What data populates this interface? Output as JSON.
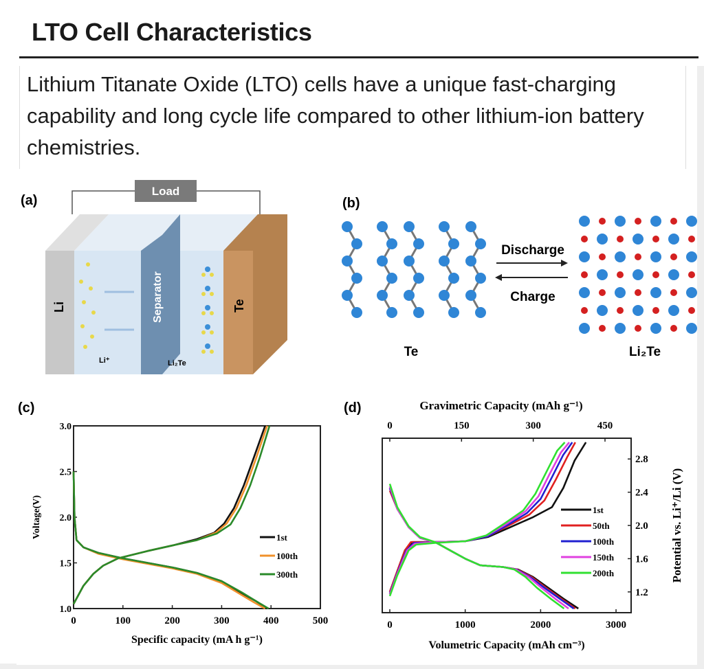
{
  "header": {
    "title": "LTO Cell Characteristics"
  },
  "body": {
    "paragraph": "Lithium Titanate Oxide (LTO) cells have a unique fast-charging capability and long cycle life compared to other lithium-ion battery chemistries."
  },
  "figure": {
    "panel_a": {
      "label": "(a)",
      "load": "Load",
      "li": "Li",
      "separator": "Separator",
      "te": "Te",
      "li_ion": "Li⁺",
      "li2te": "Li₂Te"
    },
    "panel_b": {
      "label": "(b)",
      "discharge": "Discharge",
      "charge": "Charge",
      "te": "Te",
      "li2te": "Li₂Te"
    },
    "panel_c": {
      "label": "(c)"
    },
    "panel_d": {
      "label": "(d)"
    }
  },
  "colors": {
    "accent": "#1c1c1c"
  },
  "chart_data": [
    {
      "type": "line",
      "title": "",
      "xlabel": "Specific capacity (mA h g⁻¹)",
      "ylabel": "Voltage(V)",
      "xlim": [
        0,
        500
      ],
      "ylim": [
        1.0,
        3.0
      ],
      "xticks": [
        "0",
        "100",
        "200",
        "300",
        "400",
        "500"
      ],
      "yticks": [
        "1.0",
        "1.5",
        "2.0",
        "2.5",
        "3.0"
      ],
      "legend": "right",
      "series": [
        {
          "name": "1st",
          "color": "#111111",
          "discharge": [
            [
              0,
              2.5
            ],
            [
              2,
              2.0
            ],
            [
              6,
              1.75
            ],
            [
              20,
              1.67
            ],
            [
              50,
              1.61
            ],
            [
              100,
              1.55
            ],
            [
              150,
              1.5
            ],
            [
              200,
              1.45
            ],
            [
              250,
              1.39
            ],
            [
              300,
              1.3
            ],
            [
              340,
              1.17
            ],
            [
              370,
              1.08
            ],
            [
              392,
              1.0
            ]
          ],
          "charge": [
            [
              0,
              1.05
            ],
            [
              20,
              1.25
            ],
            [
              40,
              1.38
            ],
            [
              60,
              1.47
            ],
            [
              90,
              1.55
            ],
            [
              150,
              1.63
            ],
            [
              200,
              1.69
            ],
            [
              250,
              1.76
            ],
            [
              285,
              1.83
            ],
            [
              305,
              1.93
            ],
            [
              325,
              2.1
            ],
            [
              345,
              2.35
            ],
            [
              365,
              2.65
            ],
            [
              388,
              3.0
            ]
          ]
        },
        {
          "name": "100th",
          "color": "#f0902a",
          "discharge": [
            [
              0,
              2.5
            ],
            [
              2,
              2.0
            ],
            [
              6,
              1.75
            ],
            [
              20,
              1.67
            ],
            [
              50,
              1.6
            ],
            [
              100,
              1.54
            ],
            [
              150,
              1.49
            ],
            [
              200,
              1.44
            ],
            [
              250,
              1.38
            ],
            [
              300,
              1.28
            ],
            [
              340,
              1.15
            ],
            [
              365,
              1.07
            ],
            [
              388,
              1.0
            ]
          ],
          "charge": [
            [
              0,
              1.05
            ],
            [
              20,
              1.25
            ],
            [
              40,
              1.38
            ],
            [
              60,
              1.47
            ],
            [
              90,
              1.55
            ],
            [
              150,
              1.63
            ],
            [
              200,
              1.69
            ],
            [
              250,
              1.75
            ],
            [
              288,
              1.83
            ],
            [
              310,
              1.93
            ],
            [
              330,
              2.1
            ],
            [
              350,
              2.35
            ],
            [
              370,
              2.65
            ],
            [
              392,
              3.0
            ]
          ]
        },
        {
          "name": "300th",
          "color": "#2a8a2a",
          "discharge": [
            [
              0,
              2.5
            ],
            [
              2,
              2.0
            ],
            [
              6,
              1.75
            ],
            [
              20,
              1.67
            ],
            [
              50,
              1.61
            ],
            [
              100,
              1.55
            ],
            [
              150,
              1.5
            ],
            [
              200,
              1.45
            ],
            [
              250,
              1.39
            ],
            [
              300,
              1.3
            ],
            [
              340,
              1.18
            ],
            [
              370,
              1.08
            ],
            [
              395,
              1.0
            ]
          ],
          "charge": [
            [
              0,
              1.05
            ],
            [
              20,
              1.25
            ],
            [
              40,
              1.38
            ],
            [
              60,
              1.47
            ],
            [
              90,
              1.55
            ],
            [
              150,
              1.63
            ],
            [
              200,
              1.69
            ],
            [
              250,
              1.75
            ],
            [
              290,
              1.82
            ],
            [
              318,
              1.92
            ],
            [
              338,
              2.1
            ],
            [
              358,
              2.35
            ],
            [
              377,
              2.65
            ],
            [
              397,
              3.0
            ]
          ]
        }
      ]
    },
    {
      "type": "line",
      "title": "",
      "xlabel": "Volumetric Capacity (mAh cm⁻³)",
      "x2label": "Gravimetric Capacity (mAh g⁻¹)",
      "ylabel": "Potential vs. Li⁺/Li (V)",
      "xlim": [
        -100,
        3200
      ],
      "ylim": [
        0.95,
        3.05
      ],
      "xticks": [
        "0",
        "1000",
        "2000",
        "3000"
      ],
      "x2ticks": [
        "0",
        "150",
        "300",
        "450"
      ],
      "yticks": [
        "1.2",
        "1.6",
        "2.0",
        "2.4",
        "2.8"
      ],
      "legend": "right",
      "series": [
        {
          "name": "1st",
          "color": "#111111",
          "discharge": [
            [
              0,
              2.45
            ],
            [
              100,
              2.2
            ],
            [
              250,
              1.98
            ],
            [
              400,
              1.85
            ],
            [
              600,
              1.8
            ],
            [
              800,
              1.7
            ],
            [
              1000,
              1.6
            ],
            [
              1200,
              1.52
            ],
            [
              1500,
              1.5
            ],
            [
              1700,
              1.47
            ],
            [
              1900,
              1.38
            ],
            [
              2100,
              1.25
            ],
            [
              2300,
              1.12
            ],
            [
              2500,
              1.0
            ]
          ],
          "charge": [
            [
              0,
              1.2
            ],
            [
              100,
              1.45
            ],
            [
              200,
              1.7
            ],
            [
              300,
              1.8
            ],
            [
              600,
              1.8
            ],
            [
              1000,
              1.81
            ],
            [
              1300,
              1.86
            ],
            [
              1600,
              1.98
            ],
            [
              1900,
              2.1
            ],
            [
              2150,
              2.22
            ],
            [
              2300,
              2.45
            ],
            [
              2450,
              2.78
            ],
            [
              2600,
              3.0
            ]
          ]
        },
        {
          "name": "50th",
          "color": "#e02020",
          "discharge": [
            [
              0,
              2.42
            ],
            [
              100,
              2.2
            ],
            [
              250,
              1.98
            ],
            [
              400,
              1.85
            ],
            [
              600,
              1.8
            ],
            [
              800,
              1.7
            ],
            [
              1000,
              1.6
            ],
            [
              1200,
              1.52
            ],
            [
              1500,
              1.5
            ],
            [
              1690,
              1.47
            ],
            [
              1880,
              1.38
            ],
            [
              2070,
              1.25
            ],
            [
              2270,
              1.12
            ],
            [
              2460,
              1.0
            ]
          ],
          "charge": [
            [
              0,
              1.2
            ],
            [
              100,
              1.45
            ],
            [
              200,
              1.7
            ],
            [
              280,
              1.8
            ],
            [
              600,
              1.8
            ],
            [
              1000,
              1.81
            ],
            [
              1300,
              1.87
            ],
            [
              1580,
              2.0
            ],
            [
              1850,
              2.13
            ],
            [
              2050,
              2.3
            ],
            [
              2200,
              2.55
            ],
            [
              2350,
              2.82
            ],
            [
              2460,
              3.0
            ]
          ]
        },
        {
          "name": "100th",
          "color": "#2020d0",
          "discharge": [
            [
              0,
              2.45
            ],
            [
              100,
              2.2
            ],
            [
              250,
              1.98
            ],
            [
              400,
              1.85
            ],
            [
              600,
              1.8
            ],
            [
              800,
              1.7
            ],
            [
              1000,
              1.6
            ],
            [
              1200,
              1.52
            ],
            [
              1500,
              1.5
            ],
            [
              1680,
              1.47
            ],
            [
              1860,
              1.38
            ],
            [
              2050,
              1.25
            ],
            [
              2250,
              1.12
            ],
            [
              2440,
              1.0
            ]
          ],
          "charge": [
            [
              0,
              1.18
            ],
            [
              100,
              1.43
            ],
            [
              220,
              1.7
            ],
            [
              320,
              1.79
            ],
            [
              600,
              1.8
            ],
            [
              1000,
              1.81
            ],
            [
              1300,
              1.87
            ],
            [
              1570,
              2.01
            ],
            [
              1820,
              2.15
            ],
            [
              2000,
              2.32
            ],
            [
              2150,
              2.58
            ],
            [
              2300,
              2.85
            ],
            [
              2420,
              3.0
            ]
          ]
        },
        {
          "name": "150th",
          "color": "#e040e0",
          "discharge": [
            [
              0,
              2.47
            ],
            [
              100,
              2.2
            ],
            [
              250,
              1.98
            ],
            [
              400,
              1.85
            ],
            [
              600,
              1.8
            ],
            [
              800,
              1.7
            ],
            [
              1000,
              1.6
            ],
            [
              1200,
              1.52
            ],
            [
              1500,
              1.5
            ],
            [
              1670,
              1.47
            ],
            [
              1840,
              1.38
            ],
            [
              2010,
              1.25
            ],
            [
              2190,
              1.12
            ],
            [
              2370,
              1.0
            ]
          ],
          "charge": [
            [
              0,
              1.17
            ],
            [
              100,
              1.42
            ],
            [
              230,
              1.7
            ],
            [
              330,
              1.78
            ],
            [
              600,
              1.8
            ],
            [
              1000,
              1.81
            ],
            [
              1290,
              1.88
            ],
            [
              1550,
              2.02
            ],
            [
              1800,
              2.17
            ],
            [
              1970,
              2.35
            ],
            [
              2120,
              2.62
            ],
            [
              2270,
              2.88
            ],
            [
              2380,
              3.0
            ]
          ]
        },
        {
          "name": "200th",
          "color": "#30e030",
          "discharge": [
            [
              0,
              2.5
            ],
            [
              100,
              2.22
            ],
            [
              250,
              1.99
            ],
            [
              400,
              1.86
            ],
            [
              600,
              1.8
            ],
            [
              800,
              1.7
            ],
            [
              1000,
              1.6
            ],
            [
              1200,
              1.52
            ],
            [
              1500,
              1.5
            ],
            [
              1650,
              1.47
            ],
            [
              1800,
              1.38
            ],
            [
              1950,
              1.25
            ],
            [
              2130,
              1.12
            ],
            [
              2310,
              1.0
            ]
          ],
          "charge": [
            [
              0,
              1.15
            ],
            [
              100,
              1.4
            ],
            [
              250,
              1.7
            ],
            [
              350,
              1.77
            ],
            [
              600,
              1.79
            ],
            [
              1000,
              1.81
            ],
            [
              1280,
              1.88
            ],
            [
              1530,
              2.03
            ],
            [
              1770,
              2.18
            ],
            [
              1930,
              2.38
            ],
            [
              2080,
              2.65
            ],
            [
              2220,
              2.9
            ],
            [
              2320,
              3.0
            ]
          ]
        }
      ]
    }
  ]
}
